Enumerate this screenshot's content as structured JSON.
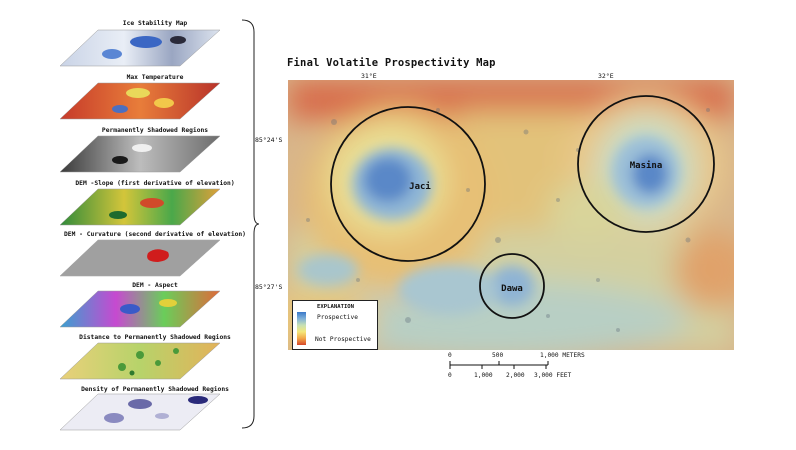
{
  "layers": [
    {
      "label": "Ice Stability Map"
    },
    {
      "label": "Max Temperature"
    },
    {
      "label": "Permanently Shadowed Regions"
    },
    {
      "label": "DEM -Slope (first derivative of elevation)"
    },
    {
      "label": "DEM - Curvature (second derivative of elevation)"
    },
    {
      "label": "DEM - Aspect"
    },
    {
      "label": "Distance to Permanently Shadowed Regions"
    },
    {
      "label": "Density of Permanently Shadowed Regions"
    }
  ],
  "map": {
    "title": "Final Volatile Prospectivity Map",
    "coords": {
      "lon_left": "31°E",
      "lon_right": "32°E",
      "lat_top": "85°24'S",
      "lat_bottom": "85°27'S"
    },
    "craters": [
      {
        "name": "Jaci"
      },
      {
        "name": "Masina"
      },
      {
        "name": "Dawa"
      }
    ],
    "legend": {
      "title": "EXPLANATION",
      "high": "Prospective",
      "low": "Not Prospective"
    },
    "scale_bar": {
      "meters_labels": [
        "0",
        "500",
        "1,000 METERS"
      ],
      "feet_labels": [
        "0",
        "1,000",
        "2,000",
        "3,000 FEET"
      ]
    }
  },
  "colors": {
    "prospective": "#3a78c9",
    "not_prospective": "#d7472a",
    "crater_outline": "#111111"
  }
}
